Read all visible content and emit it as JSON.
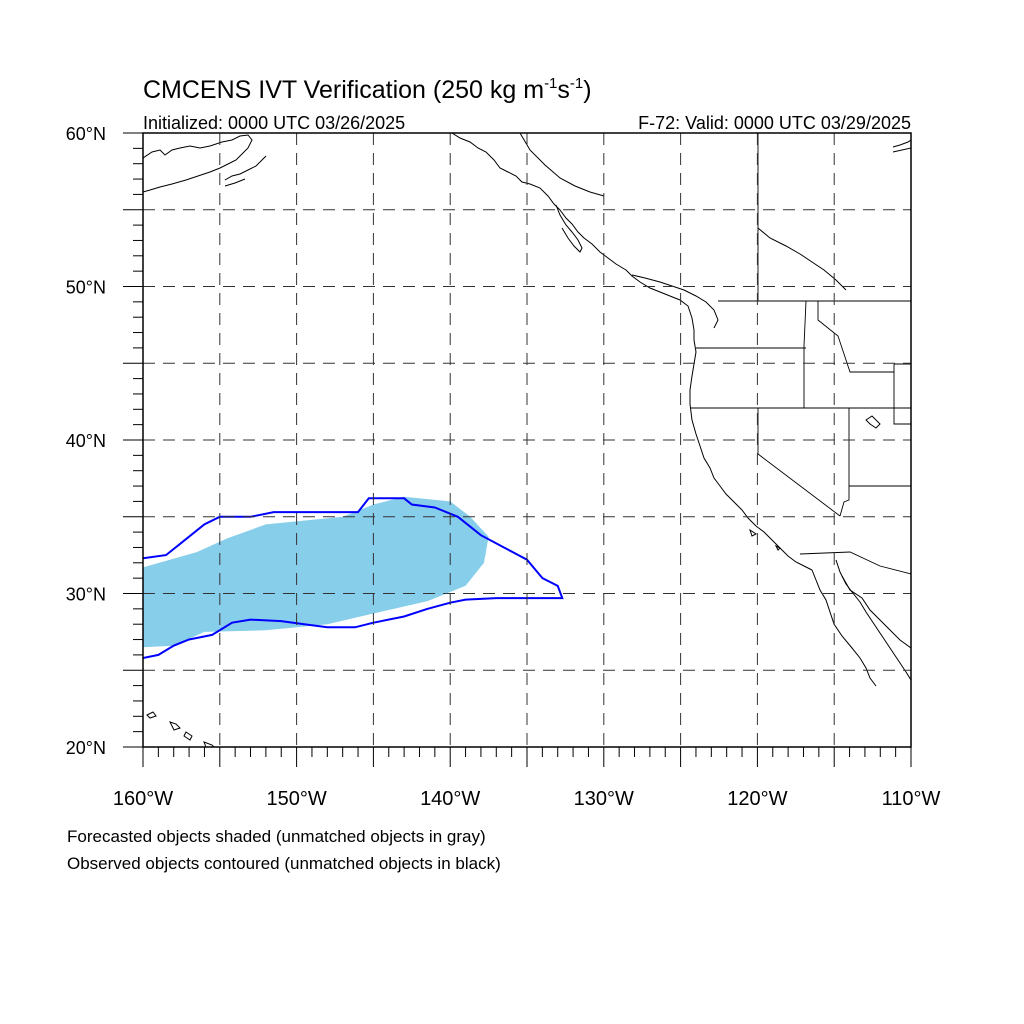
{
  "title": {
    "main": "CMCENS IVT Verification (250 kg m",
    "exp1": "-1",
    "mid": "s",
    "exp2": "-1",
    "close": ")"
  },
  "subtitle": {
    "initialized": "Initialized: 0000 UTC 03/26/2025",
    "valid": "F-72: Valid: 0000 UTC 03/29/2025"
  },
  "map": {
    "lon_range": [
      -160,
      -110
    ],
    "lat_range": [
      20,
      60
    ],
    "grid_lon_step": 5,
    "grid_lat_step": 5,
    "lat_labels": [
      {
        "value": 20,
        "label": "20°N"
      },
      {
        "value": 30,
        "label": "30°N"
      },
      {
        "value": 40,
        "label": "40°N"
      },
      {
        "value": 50,
        "label": "50°N"
      },
      {
        "value": 60,
        "label": "60°N"
      }
    ],
    "lon_labels": [
      {
        "value": -160,
        "label": "160°W"
      },
      {
        "value": -150,
        "label": "150°W"
      },
      {
        "value": -140,
        "label": "140°W"
      },
      {
        "value": -130,
        "label": "130°W"
      },
      {
        "value": -120,
        "label": "120°W"
      },
      {
        "value": -110,
        "label": "110°W"
      }
    ],
    "forecast_object": {
      "color": "#87ceeb",
      "polygon_lonlat": [
        [
          -160,
          31.7
        ],
        [
          -156.5,
          32.7
        ],
        [
          -154.5,
          33.6
        ],
        [
          -152,
          34.5
        ],
        [
          -147,
          35
        ],
        [
          -145,
          35.8
        ],
        [
          -143,
          36.3
        ],
        [
          -140,
          36
        ],
        [
          -138.7,
          35
        ],
        [
          -137.5,
          33.7
        ],
        [
          -137.8,
          32
        ],
        [
          -139,
          30.5
        ],
        [
          -141.5,
          29.5
        ],
        [
          -145,
          28.7
        ],
        [
          -148,
          28
        ],
        [
          -152,
          27.6
        ],
        [
          -156,
          27.5
        ],
        [
          -158,
          26.6
        ],
        [
          -160,
          26.5
        ]
      ]
    },
    "observed_object": {
      "color": "#0000ff",
      "polygon_lonlat": [
        [
          -160,
          32.3
        ],
        [
          -158.5,
          32.5
        ],
        [
          -157.5,
          33.3
        ],
        [
          -156,
          34.5
        ],
        [
          -155,
          35
        ],
        [
          -153,
          35
        ],
        [
          -151.5,
          35.3
        ],
        [
          -148.5,
          35.3
        ],
        [
          -146,
          35.3
        ],
        [
          -145.3,
          36.2
        ],
        [
          -143,
          36.2
        ],
        [
          -142.5,
          35.8
        ],
        [
          -141,
          35.6
        ],
        [
          -139.5,
          35
        ],
        [
          -138,
          33.8
        ],
        [
          -136.5,
          33
        ],
        [
          -135,
          32.2
        ],
        [
          -134,
          31
        ],
        [
          -133,
          30.5
        ],
        [
          -132.7,
          29.7
        ],
        [
          -135,
          29.7
        ],
        [
          -137,
          29.7
        ],
        [
          -139,
          29.6
        ],
        [
          -140,
          29.4
        ],
        [
          -141.5,
          29
        ],
        [
          -143,
          28.5
        ],
        [
          -145,
          28.1
        ],
        [
          -146.2,
          27.8
        ],
        [
          -148,
          27.8
        ],
        [
          -149.5,
          28
        ],
        [
          -151,
          28.2
        ],
        [
          -153,
          28.3
        ],
        [
          -154.2,
          28.1
        ],
        [
          -155.5,
          27.3
        ],
        [
          -157,
          27
        ],
        [
          -158,
          26.6
        ],
        [
          -159,
          26
        ],
        [
          -160,
          25.8
        ]
      ]
    }
  },
  "notes": {
    "forecast": "Forecasted objects shaded (unmatched objects in gray)",
    "observed": "Observed objects contoured (unmatched objects in black)"
  }
}
